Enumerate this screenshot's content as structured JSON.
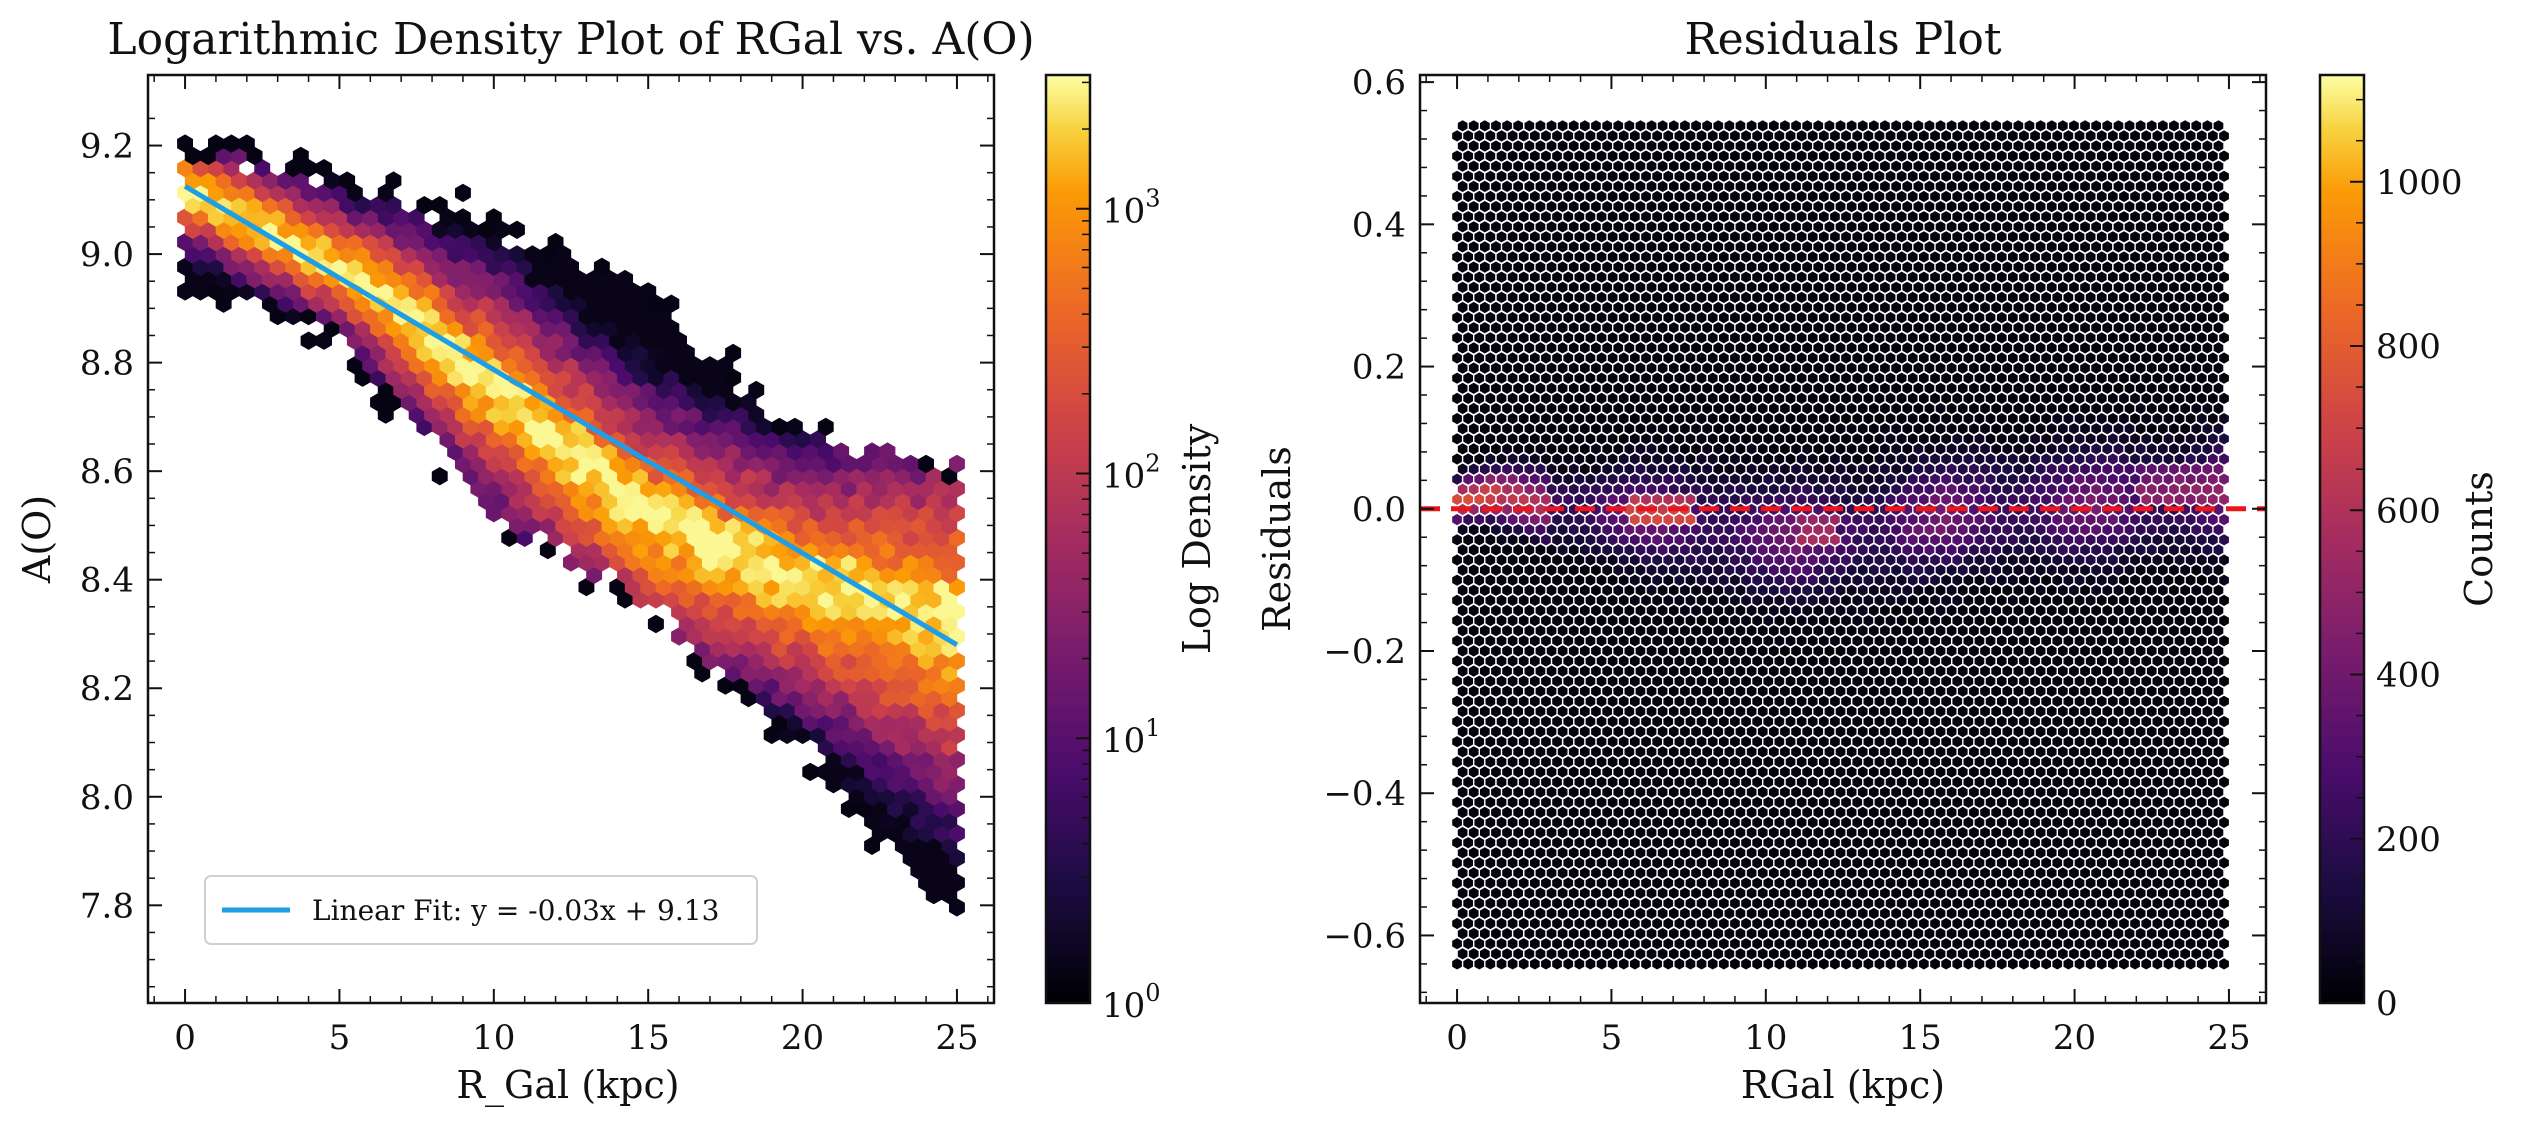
{
  "chart_data": [
    {
      "type": "heatmap",
      "subtype": "hexbin",
      "title": "Logarithmic Density Plot of RGal vs. A(O)",
      "xlabel": "R_Gal (kpc)",
      "ylabel": "A(O)",
      "xlim": [
        -1.2,
        26.2
      ],
      "ylim": [
        7.62,
        9.33
      ],
      "xticks": [
        0,
        5,
        10,
        15,
        20,
        25
      ],
      "yticks": [
        7.8,
        8.0,
        8.2,
        8.4,
        8.6,
        8.8,
        9.0,
        9.2
      ],
      "xtick_labels": [
        "0",
        "5",
        "10",
        "15",
        "20",
        "25"
      ],
      "ytick_labels": [
        "7.8",
        "8.0",
        "8.2",
        "8.4",
        "8.6",
        "8.8",
        "9.0",
        "9.2"
      ],
      "density_ridge": {
        "x": [
          0,
          5,
          10,
          15,
          20,
          25
        ],
        "upper": [
          9.19,
          9.12,
          9.05,
          8.92,
          8.65,
          8.6
        ],
        "lower": [
          8.95,
          8.85,
          8.52,
          8.36,
          8.1,
          7.77
        ],
        "peak": [
          9.12,
          8.98,
          8.76,
          8.52,
          8.4,
          8.33
        ]
      },
      "fit": {
        "label": "Linear Fit: y = -0.03x + 9.13",
        "slope": -0.0338,
        "intercept": 9.125,
        "x_range": [
          0,
          25
        ],
        "color": "#1e9ee6"
      },
      "legend_position": "lower-left",
      "colorbar": {
        "label": "Log Density",
        "scale": "log",
        "range": [
          1,
          3200
        ],
        "ticks": [
          1,
          10,
          100,
          1000
        ],
        "tick_base": "10",
        "tick_exponents": [
          "0",
          "1",
          "2",
          "3"
        ],
        "colormap": "inferno"
      }
    },
    {
      "type": "heatmap",
      "subtype": "hexbin",
      "title": "Residuals Plot",
      "xlabel": "RGal (kpc)",
      "ylabel": "Residuals",
      "xlim": [
        -1.2,
        26.2
      ],
      "ylim": [
        -0.695,
        0.61
      ],
      "xticks": [
        0,
        5,
        10,
        15,
        20,
        25
      ],
      "yticks": [
        -0.6,
        -0.4,
        -0.2,
        0.0,
        0.2,
        0.4,
        0.6
      ],
      "xtick_labels": [
        "0",
        "5",
        "10",
        "15",
        "20",
        "25"
      ],
      "ytick_labels": [
        "−0.6",
        "−0.4",
        "−0.2",
        "0.0",
        "0.2",
        "0.4",
        "0.6"
      ],
      "hex_extent": {
        "x": [
          0,
          25
        ],
        "y": [
          -0.64,
          0.55
        ]
      },
      "reference_line": {
        "y": 0.0,
        "style": "dashed",
        "color": "#e8161b"
      },
      "colorbar": {
        "label": "Counts",
        "scale": "linear",
        "range": [
          0,
          1130
        ],
        "ticks": [
          0,
          200,
          400,
          600,
          800,
          1000
        ],
        "tick_labels": [
          "0",
          "200",
          "400",
          "600",
          "800",
          "1000"
        ],
        "colormap": "inferno"
      }
    }
  ]
}
